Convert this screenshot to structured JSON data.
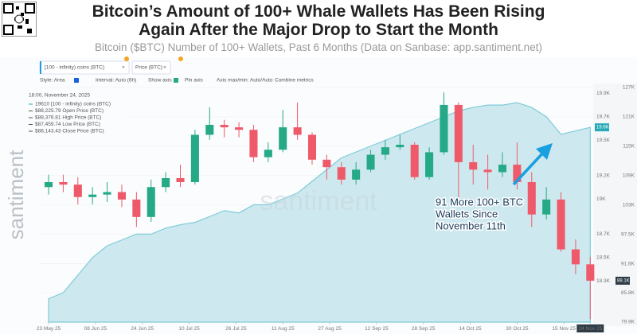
{
  "header": {
    "title_lines": [
      "Bitcoin’s Amount of 100+ Whale Wallets Has Been Rising",
      "Again After the Major Drop to Start the Month"
    ],
    "subtitle": "Bitcoin ($BTC) Number of 100+ Wallets, Past 6 Months (Data on Sanbase: app.santiment.net)"
  },
  "toolbar": {
    "style": "Style: Area",
    "interval": "Interval: Auto (6h)",
    "show_axis": "Show axis",
    "pin_axis": "Pin axis",
    "axis_range": "Axis max/min: Auto/Auto",
    "combine": "Combine metrics"
  },
  "tooltip": {
    "time": "18:00, November 24, 2025",
    "rows": [
      "19610 [100 - infinity) coins (BTC)",
      "$88,225.79 Open Price (BTC)",
      "$88,376.81 High Price (BTC)",
      "$87,459.74 Low Price (BTC)",
      "$88,143.43 Close Price (BTC)"
    ]
  },
  "watermark": "santiment",
  "chart_data": {
    "type": "candlestick",
    "x": [
      "2025-05-23",
      "2025-05-28",
      "2025-06-02",
      "2025-06-07",
      "2025-06-12",
      "2025-06-17",
      "2025-06-22",
      "2025-06-27",
      "2025-07-02",
      "2025-07-07",
      "2025-07-12",
      "2025-07-17",
      "2025-07-22",
      "2025-07-27",
      "2025-08-01",
      "2025-08-06",
      "2025-08-11",
      "2025-08-16",
      "2025-08-21",
      "2025-08-26",
      "2025-08-31",
      "2025-09-05",
      "2025-09-10",
      "2025-09-15",
      "2025-09-20",
      "2025-09-25",
      "2025-09-30",
      "2025-10-05",
      "2025-10-10",
      "2025-10-15",
      "2025-10-20",
      "2025-10-25",
      "2025-10-30",
      "2025-11-04",
      "2025-11-09",
      "2025-11-14",
      "2025-11-19",
      "2025-11-24"
    ],
    "xlim": [
      "2025-05-20",
      "2025-11-25"
    ],
    "xticks": [
      {
        "value": "2025-05-23",
        "label": "23 May 25"
      },
      {
        "value": "2025-06-08",
        "label": "08 Jun 25"
      },
      {
        "value": "2025-06-24",
        "label": "24 Jun 25"
      },
      {
        "value": "2025-07-10",
        "label": "10 Jul 25"
      },
      {
        "value": "2025-07-26",
        "label": "26 Jul 25"
      },
      {
        "value": "2025-08-11",
        "label": "11 Aug 25"
      },
      {
        "value": "2025-08-27",
        "label": "27 Aug 25"
      },
      {
        "value": "2025-09-12",
        "label": "12 Sep 25"
      },
      {
        "value": "2025-09-28",
        "label": "28 Sep 25"
      },
      {
        "value": "2025-10-14",
        "label": "14 Oct 25"
      },
      {
        "value": "2025-10-30",
        "label": "30 Oct 25"
      },
      {
        "value": "2025-11-15",
        "label": "15 Nov 25"
      },
      {
        "value": "2025-11-24",
        "label": "24 Nov 25"
      }
    ],
    "series": [
      {
        "name": "[100 - infinity) coins (BTC)",
        "type": "area",
        "axis": "y2",
        "color": "#7fcbd9",
        "fill": "#cde9ef",
        "last_label": "19.6K",
        "values": [
          18150,
          18200,
          18350,
          18500,
          18600,
          18650,
          18700,
          18700,
          18750,
          18780,
          18800,
          18850,
          18900,
          18880,
          18950,
          18950,
          19000,
          19050,
          19150,
          19250,
          19350,
          19400,
          19450,
          19500,
          19550,
          19600,
          19650,
          19700,
          19750,
          19780,
          19800,
          19800,
          19820,
          19780,
          19700,
          19550,
          19580,
          19610
        ]
      },
      {
        "name": "Price (BTC)",
        "type": "candlestick",
        "color_up": "#26a987",
        "color_down": "#ef5a6a",
        "last_label": "88.1K",
        "open": [
          107000,
          108000,
          107500,
          105000,
          105500,
          106000,
          104500,
          101000,
          107000,
          108800,
          108000,
          117500,
          119500,
          119000,
          118500,
          113000,
          114500,
          119000,
          117500,
          112500,
          111000,
          108500,
          110500,
          113500,
          115000,
          115500,
          109000,
          114000,
          123500,
          112000,
          110500,
          110000,
          111500,
          108000,
          101500,
          104500,
          94500,
          91500
        ],
        "high": [
          109500,
          109500,
          109000,
          107000,
          108000,
          107500,
          106000,
          108500,
          110000,
          111500,
          118500,
          123000,
          120500,
          120000,
          119500,
          116000,
          122500,
          124000,
          118000,
          113500,
          112000,
          112000,
          114500,
          116500,
          117500,
          116000,
          115000,
          126000,
          124000,
          115500,
          113500,
          114000,
          116000,
          110000,
          107000,
          106000,
          96500,
          93000
        ],
        "low": [
          105500,
          106000,
          103500,
          103500,
          104000,
          103000,
          99000,
          100000,
          106000,
          107000,
          107500,
          116500,
          117000,
          117000,
          112000,
          112000,
          114000,
          116500,
          111500,
          108500,
          107500,
          107500,
          110000,
          112500,
          114500,
          108500,
          108500,
          113500,
          104500,
          107500,
          106500,
          109000,
          106500,
          99000,
          100500,
          94000,
          89500,
          80500
        ],
        "close": [
          108000,
          107500,
          105000,
          105500,
          106000,
          104500,
          101000,
          107000,
          108800,
          108000,
          117500,
          119500,
          119000,
          118500,
          113000,
          114500,
          119000,
          117500,
          112500,
          111000,
          108500,
          110500,
          113500,
          115000,
          115500,
          109000,
          114000,
          123500,
          112000,
          110500,
          110000,
          111500,
          108000,
          101500,
          104500,
          94500,
          91500,
          88200
        ]
      }
    ],
    "ylim": [
      79900,
      127000
    ],
    "yticks": [
      {
        "value": 127000,
        "label": "127K"
      },
      {
        "value": 121100,
        "label": "121K"
      },
      {
        "value": 115200,
        "label": "115K"
      },
      {
        "value": 109300,
        "label": "109K"
      },
      {
        "value": 103400,
        "label": "103K"
      },
      {
        "value": 97500,
        "label": "97.5K"
      },
      {
        "value": 91600,
        "label": "91.6K"
      },
      {
        "value": 85800,
        "label": "85.8K"
      },
      {
        "value": 79900,
        "label": "79.9K"
      }
    ],
    "y2lim": [
      17950,
      19950
    ],
    "y2ticks": [
      {
        "value": 19900,
        "label": "19.9K"
      },
      {
        "value": 19700,
        "label": "19.7K"
      },
      {
        "value": 19500,
        "label": "19.5K"
      },
      {
        "value": 19200,
        "label": "19.2K"
      },
      {
        "value": 19000,
        "label": "19K"
      },
      {
        "value": 18700,
        "label": "18.7K"
      },
      {
        "value": 18500,
        "label": "18.5K"
      },
      {
        "value": 18300,
        "label": "18.3K"
      }
    ],
    "grid": true,
    "annotation": {
      "lines": [
        "91 More 100+ BTC",
        "Wallets Since",
        "November 11th"
      ],
      "arrow_color": "#1a9fe0"
    }
  }
}
